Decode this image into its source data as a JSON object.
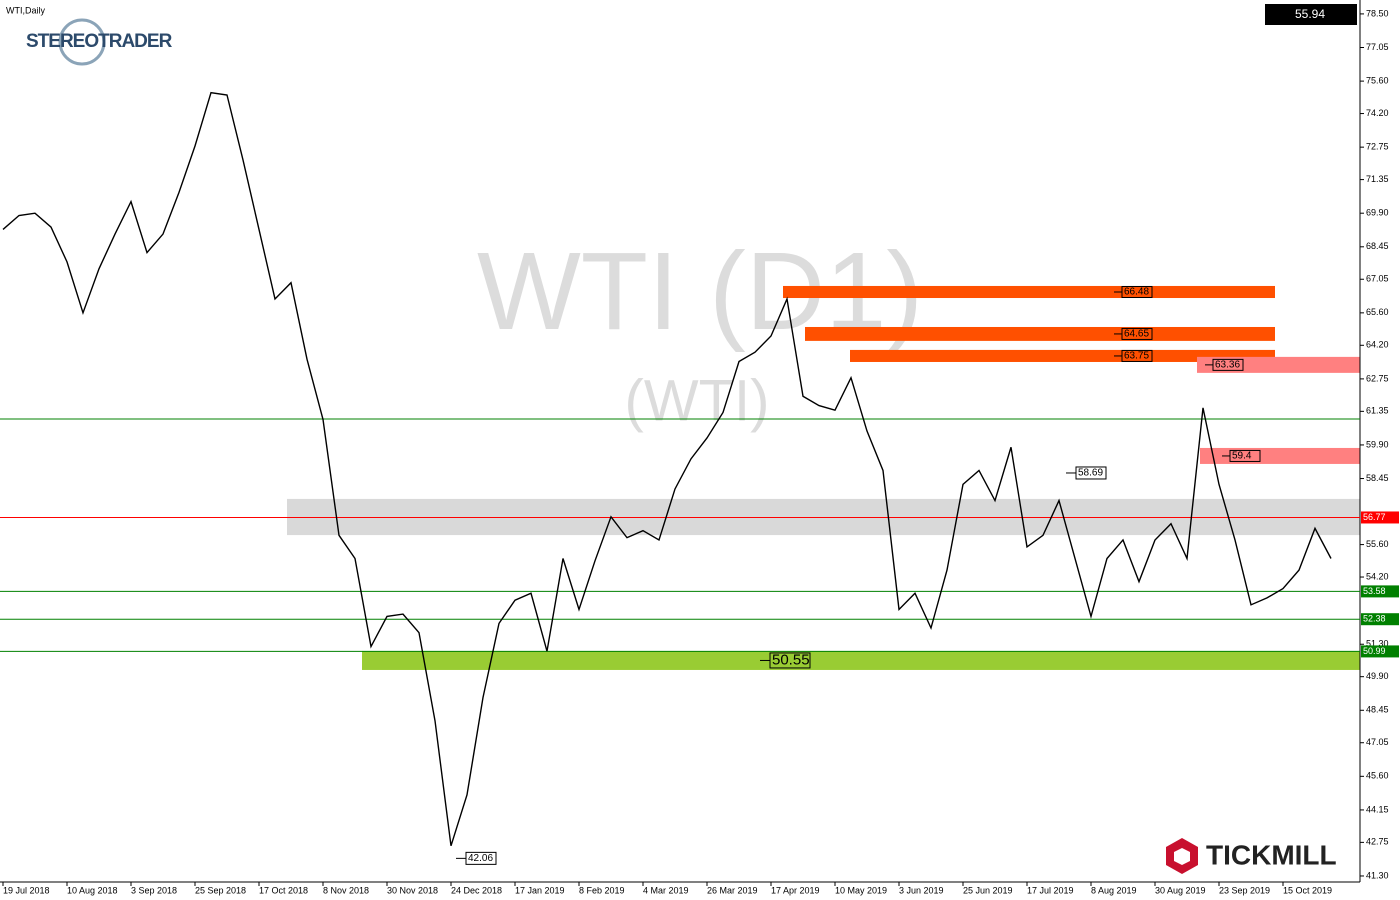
{
  "chart_data": {
    "type": "line",
    "title": "WTI,Daily",
    "watermark": "WTI (D1)",
    "watermark_sub": "(WTI)",
    "brand": "STEREOTRADER",
    "broker": "TICKMILL",
    "current_price": 55.94,
    "color": "#000000",
    "categories": [
      "19 Jul 2018",
      null,
      null,
      null,
      "10 Aug 2018",
      null,
      null,
      null,
      "3 Sep 2018",
      null,
      null,
      null,
      "25 Sep 2018",
      null,
      null,
      null,
      "17 Oct 2018",
      null,
      null,
      null,
      "8 Nov 2018",
      null,
      null,
      null,
      "30 Nov 2018",
      null,
      null,
      null,
      "24 Dec 2018",
      null,
      null,
      null,
      "17 Jan 2019",
      null,
      null,
      null,
      "8 Feb 2019",
      null,
      null,
      null,
      "4 Mar 2019",
      null,
      null,
      null,
      "26 Mar 2019",
      null,
      null,
      null,
      "17 Apr 2019",
      null,
      null,
      null,
      "10 May 2019",
      null,
      null,
      null,
      "3 Jun 2019",
      null,
      null,
      null,
      "25 Jun 2019",
      null,
      null,
      null,
      "17 Jul 2019",
      null,
      null,
      null,
      "8 Aug 2019",
      null,
      null,
      null,
      "30 Aug 2019",
      null,
      null,
      null,
      "23 Sep 2019",
      null,
      null,
      null,
      "15 Oct 2019",
      null,
      null,
      null
    ],
    "values": [
      69.2,
      69.8,
      69.9,
      69.3,
      67.8,
      65.6,
      67.5,
      69.0,
      70.4,
      68.2,
      69.0,
      70.8,
      72.8,
      75.1,
      75.0,
      72.2,
      69.2,
      66.2,
      66.9,
      63.6,
      61.0,
      56.0,
      55.0,
      51.2,
      52.5,
      52.6,
      51.8,
      48.0,
      42.6,
      44.8,
      49.0,
      52.2,
      53.2,
      53.5,
      51.0,
      55.0,
      52.8,
      54.9,
      56.8,
      55.9,
      56.2,
      55.8,
      58.0,
      59.3,
      60.2,
      61.3,
      63.5,
      63.9,
      64.6,
      66.2,
      62.0,
      61.6,
      61.4,
      62.8,
      60.5,
      58.8,
      52.8,
      53.5,
      52.0,
      54.5,
      58.2,
      58.8,
      57.5,
      59.8,
      55.5,
      56.0,
      57.5,
      55.0,
      52.5,
      55.0,
      55.8,
      54.0,
      55.8,
      56.5,
      55.0,
      61.5,
      58.2,
      55.8,
      53.0,
      53.3,
      53.7,
      54.5,
      56.3,
      55.0
    ],
    "ylim": [
      41.04,
      79.1
    ],
    "yticks": [
      {
        "value": 78.5,
        "label": "78.50"
      },
      77.05,
      {
        "value": 75.6,
        "label": "75.60"
      },
      {
        "value": 74.2,
        "label": "74.20"
      },
      72.75,
      71.35,
      {
        "value": 69.9,
        "label": "69.90"
      },
      68.45,
      67.05,
      {
        "value": 65.6,
        "label": "65.60"
      },
      {
        "value": 64.2,
        "label": "64.20"
      },
      62.75,
      61.35,
      {
        "value": 59.9,
        "label": "59.90"
      },
      58.45,
      {
        "value": 55.6,
        "label": "55.60"
      },
      {
        "value": 54.2,
        "label": "54.20"
      },
      {
        "value": 51.3,
        "label": "51.30"
      },
      {
        "value": 49.9,
        "label": "49.90"
      },
      48.45,
      47.05,
      {
        "value": 45.6,
        "label": "45.60"
      },
      44.15,
      42.75,
      {
        "value": 41.3,
        "label": "41.30"
      }
    ],
    "levels": [
      {
        "value": 61.02,
        "color": "#008000",
        "tagged": false
      },
      {
        "value": 56.77,
        "color": "#ff0000",
        "tagged": true
      },
      {
        "value": 53.58,
        "color": "#008000",
        "tagged": true
      },
      {
        "value": 52.38,
        "color": "#008000",
        "tagged": true
      },
      {
        "value": 50.99,
        "color": "#008000",
        "tagged": true
      }
    ],
    "zones": [
      {
        "label": 66.48,
        "top": 66.76,
        "bottom": 66.24,
        "color": "#ff5000"
      },
      {
        "label": 64.65,
        "top": 64.99,
        "bottom": 64.39,
        "color": "#ff5000"
      },
      {
        "label": 63.75,
        "top": 64.0,
        "bottom": 63.48,
        "color": "#ff5000"
      },
      {
        "label": 63.36,
        "top": 63.7,
        "bottom": 63.01,
        "color": "#ff8080"
      },
      {
        "label": 59.4,
        "top": 59.77,
        "bottom": 59.08,
        "color": "#ff8080"
      },
      {
        "top": 57.57,
        "bottom": 56.01,
        "color": "#d9d9d9"
      },
      {
        "label": 50.55,
        "top": 51.01,
        "bottom": 50.19,
        "color": "#99cc33"
      }
    ],
    "annotations": [
      58.69,
      42.06
    ]
  }
}
